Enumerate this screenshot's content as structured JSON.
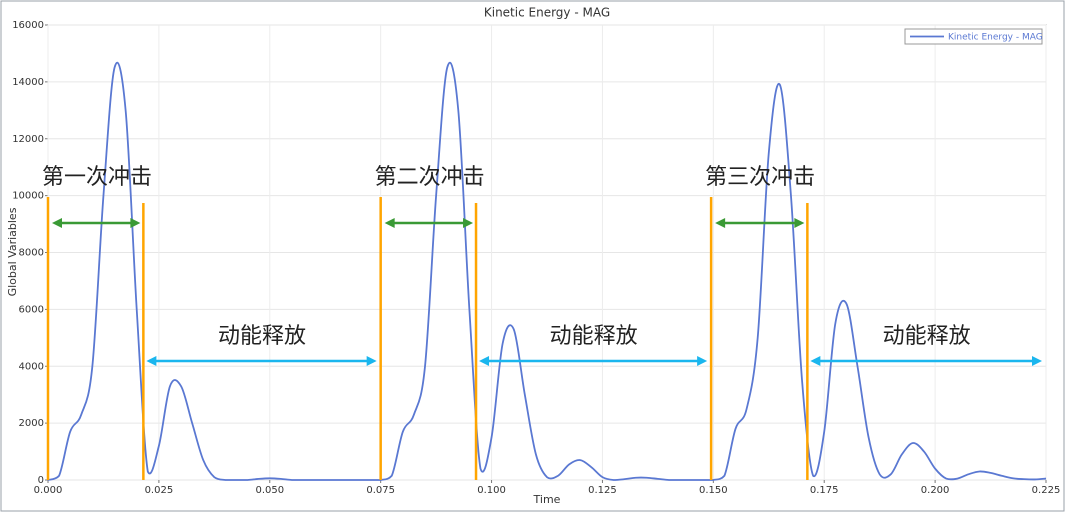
{
  "chart_data": {
    "type": "line",
    "title": "Kinetic Energy - MAG",
    "xlabel": "Time",
    "ylabel": "Global Variables",
    "xlim": [
      0,
      0.225
    ],
    "ylim": [
      0,
      16000
    ],
    "xticks": [
      {
        "value": 0,
        "label": "0.000"
      },
      {
        "value": 0.025,
        "label": "0.025"
      },
      {
        "value": 0.05,
        "label": "0.050"
      },
      {
        "value": 0.075,
        "label": "0.075"
      },
      {
        "value": 0.1,
        "label": "0.100"
      },
      {
        "value": 0.125,
        "label": "0.125"
      },
      {
        "value": 0.15,
        "label": "0.150"
      },
      {
        "value": 0.175,
        "label": "0.175"
      },
      {
        "value": 0.2,
        "label": "0.200"
      },
      {
        "value": 0.225,
        "label": "0.225"
      }
    ],
    "yticks": [
      0,
      2000,
      4000,
      6000,
      8000,
      10000,
      12000,
      14000,
      16000
    ],
    "grid": true,
    "legend": "upper right",
    "x": [
      0,
      0.0025,
      0.005,
      0.0075,
      0.01,
      0.0125,
      0.015,
      0.0175,
      0.02,
      0.0225,
      0.025,
      0.0275,
      0.03,
      0.0325,
      0.035,
      0.0375,
      0.04,
      0.0425,
      0.045,
      0.0475,
      0.05,
      0.0525,
      0.055,
      0.0575,
      0.06,
      0.0625,
      0.065,
      0.0675,
      0.07,
      0.0725,
      0.075,
      0.0775,
      0.08,
      0.0825,
      0.085,
      0.0875,
      0.09,
      0.0925,
      0.095,
      0.0975,
      0.1,
      0.1025,
      0.105,
      0.1075,
      0.11,
      0.1125,
      0.115,
      0.1175,
      0.12,
      0.1225,
      0.125,
      0.1275,
      0.13,
      0.1325,
      0.135,
      0.1375,
      0.14,
      0.1425,
      0.145,
      0.1475,
      0.15,
      0.1525,
      0.155,
      0.1575,
      0.16,
      0.1625,
      0.165,
      0.1675,
      0.17,
      0.1725,
      0.175,
      0.1775,
      0.18,
      0.1825,
      0.185,
      0.1875,
      0.19,
      0.1925,
      0.195,
      0.1975,
      0.2,
      0.2025,
      0.205,
      0.2075,
      0.21,
      0.2125,
      0.215,
      0.2175,
      0.22,
      0.2225,
      0.225
    ],
    "series": [
      {
        "name": "Kinetic Energy - MAG",
        "color": "#5a78d2",
        "values": [
          0,
          150,
          1700,
          2300,
          4000,
          10000,
          14500,
          13000,
          6000,
          300,
          1200,
          3300,
          3300,
          2000,
          700,
          100,
          0,
          0,
          0,
          40,
          60,
          40,
          0,
          0,
          0,
          0,
          0,
          0,
          0,
          0,
          0,
          150,
          1700,
          2300,
          4000,
          10000,
          14500,
          13000,
          6000,
          400,
          1500,
          4800,
          5300,
          3000,
          900,
          100,
          150,
          550,
          700,
          450,
          100,
          0,
          30,
          80,
          80,
          40,
          0,
          0,
          0,
          0,
          0,
          150,
          1800,
          2500,
          5000,
          11500,
          13900,
          10000,
          3500,
          150,
          1700,
          5500,
          6200,
          4000,
          1500,
          200,
          200,
          900,
          1300,
          1000,
          400,
          50,
          50,
          200,
          300,
          250,
          150,
          60,
          30,
          20,
          50
        ]
      }
    ],
    "phases": [
      {
        "label": "第一次冲击",
        "start": 0,
        "end": 0.0215,
        "color": "#3a9a35",
        "edge_color": "#ffa500"
      },
      {
        "label": "动能释放",
        "start": 0.0215,
        "end": 0.075,
        "color": "#1ab6ee"
      },
      {
        "label": "第二次冲击",
        "start": 0.075,
        "end": 0.0965,
        "color": "#3a9a35",
        "edge_color": "#ffa500"
      },
      {
        "label": "动能释放",
        "start": 0.0965,
        "end": 0.1495,
        "color": "#1ab6ee"
      },
      {
        "label": "第三次冲击",
        "start": 0.1495,
        "end": 0.1712,
        "color": "#3a9a35",
        "edge_color": "#ffa500"
      },
      {
        "label": "动能释放",
        "start": 0.1712,
        "end": 0.225,
        "color": "#1ab6ee"
      }
    ]
  }
}
